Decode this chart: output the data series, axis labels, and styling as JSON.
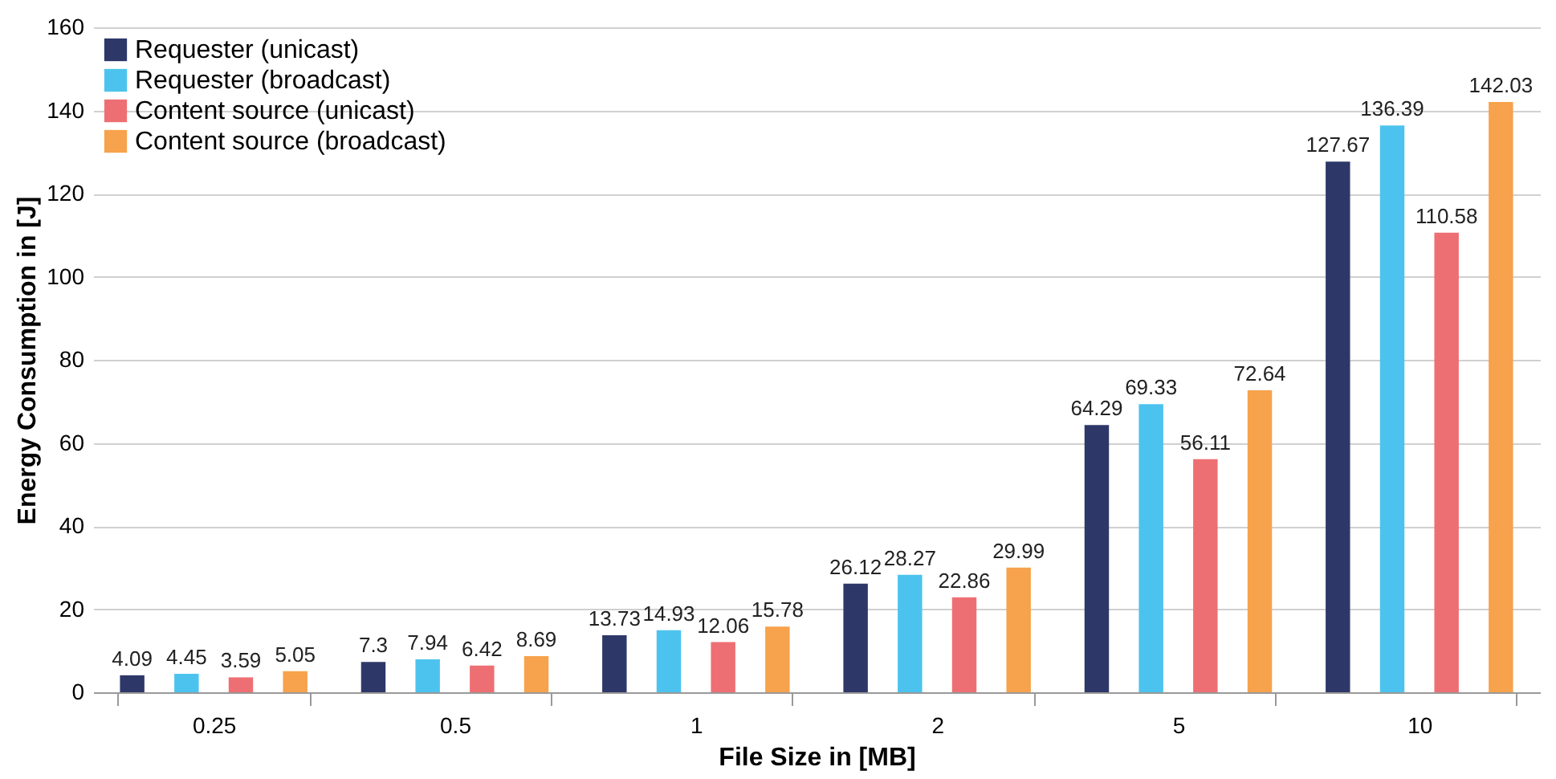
{
  "chart_data": {
    "type": "bar",
    "xlabel": "File Size in [MB]",
    "ylabel": "Energy Consumption in [J]",
    "categories": [
      "0.25",
      "0.5",
      "1",
      "2",
      "5",
      "10"
    ],
    "series": [
      {
        "name": "Requester (unicast)",
        "color": "#2e3868",
        "values": [
          4.09,
          7.3,
          13.73,
          26.12,
          64.29,
          127.67
        ]
      },
      {
        "name": "Requester (broadcast)",
        "color": "#4cc3ee",
        "values": [
          4.45,
          7.94,
          14.93,
          28.27,
          69.33,
          136.39
        ]
      },
      {
        "name": "Content source (unicast)",
        "color": "#ee6f73",
        "values": [
          3.59,
          6.42,
          12.06,
          22.86,
          56.11,
          110.58
        ]
      },
      {
        "name": "Content source (broadcast)",
        "color": "#f7a24c",
        "values": [
          5.05,
          8.69,
          15.78,
          29.99,
          72.64,
          142.03
        ]
      }
    ],
    "ylim": [
      0,
      160
    ],
    "yticks": [
      0,
      20,
      40,
      60,
      80,
      100,
      120,
      140,
      160
    ],
    "grid": "y",
    "legend": "top left",
    "data_labels": true
  }
}
